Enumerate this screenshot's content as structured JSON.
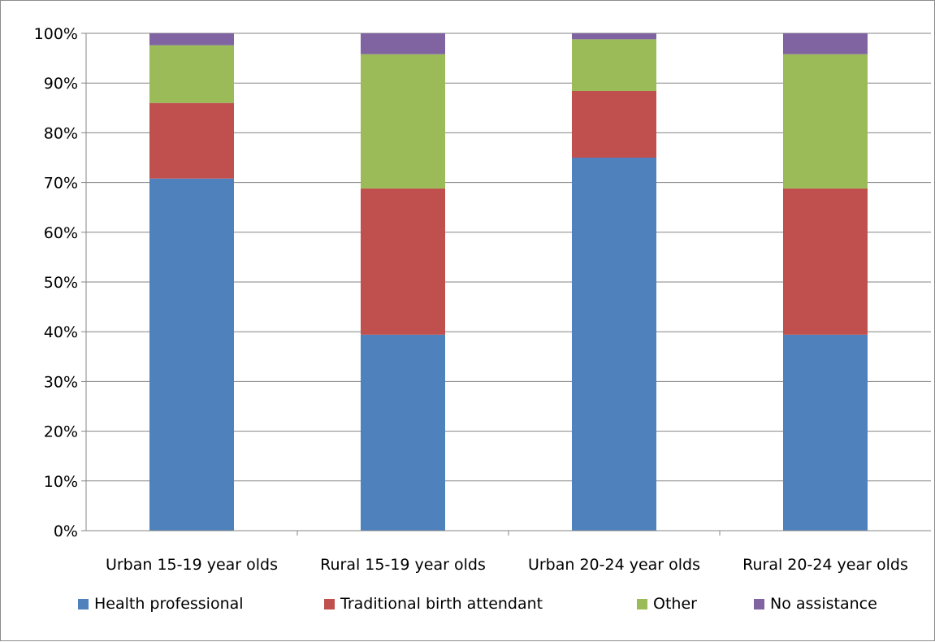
{
  "chart_data": {
    "type": "bar",
    "stacked": true,
    "percent": true,
    "categories": [
      "Urban 15-19 year olds",
      "Rural 15-19 year olds",
      "Urban 20-24 year olds",
      "Rural 20-24 year olds"
    ],
    "series": [
      {
        "name": "Health professional",
        "color": "#4f81bd",
        "values": [
          70.8,
          39.4,
          75.0,
          39.4
        ]
      },
      {
        "name": "Traditional birth attendant",
        "color": "#c0504d",
        "values": [
          15.2,
          29.4,
          13.4,
          29.4
        ]
      },
      {
        "name": "Other",
        "color": "#9bbb59",
        "values": [
          11.6,
          27.0,
          10.4,
          27.0
        ]
      },
      {
        "name": "No assistance",
        "color": "#8064a2",
        "values": [
          2.4,
          4.2,
          1.2,
          4.2
        ]
      }
    ],
    "yticks": [
      "0%",
      "10%",
      "20%",
      "30%",
      "40%",
      "50%",
      "60%",
      "70%",
      "80%",
      "90%",
      "100%"
    ],
    "ylim": [
      0,
      100
    ],
    "grid": true,
    "legend_position": "bottom",
    "title": "",
    "xlabel": "",
    "ylabel": ""
  }
}
